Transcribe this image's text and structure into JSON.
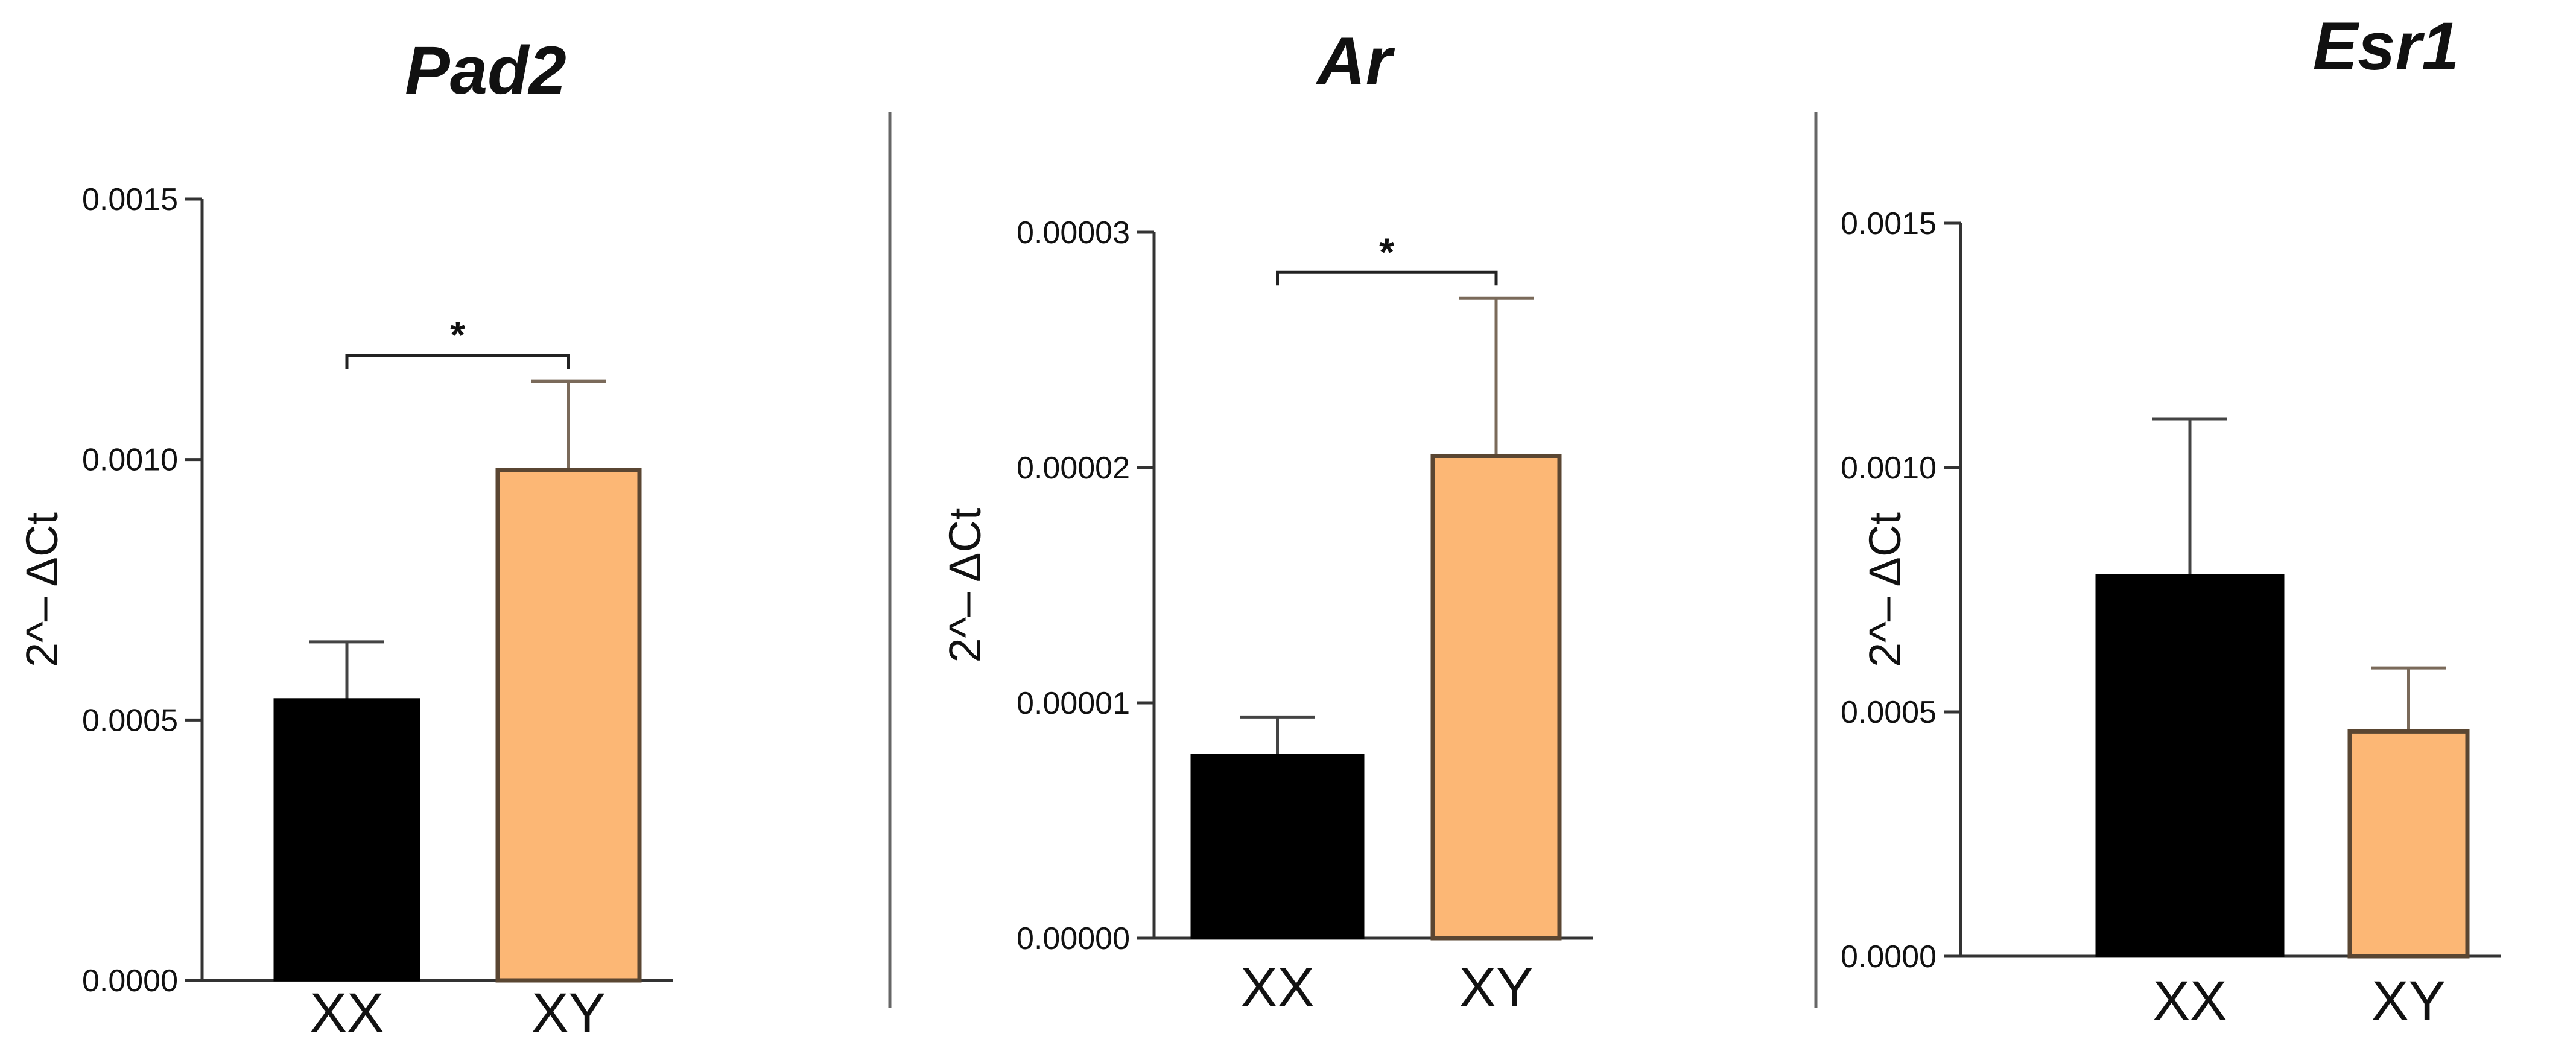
{
  "colors": {
    "xx_fill": "#000000",
    "xy_fill": "#FCB775",
    "xy_stroke": "#5a4632",
    "axis": "#333333",
    "divider": "#666666"
  },
  "chart_data": [
    {
      "type": "bar",
      "title": "Pad2",
      "ylabel": "2^– ΔCt",
      "categories": [
        "XX",
        "XY"
      ],
      "values": [
        0.00054,
        0.00098
      ],
      "errors": [
        0.00011,
        0.00017
      ],
      "ylim": [
        0,
        0.0015
      ],
      "yticks": [
        0.0,
        0.0005,
        0.001,
        0.0015
      ],
      "ytick_labels": [
        "0.0000",
        "0.0005",
        "0.0010",
        "0.0015"
      ],
      "significance": {
        "from": "XX",
        "to": "XY",
        "label": "*",
        "y": 0.0012
      }
    },
    {
      "type": "bar",
      "title": "Ar",
      "ylabel": "2^– ΔCt",
      "categories": [
        "XX",
        "XY"
      ],
      "values": [
        7.8e-06,
        2.05e-05
      ],
      "errors": [
        1.6e-06,
        6.7e-06
      ],
      "ylim": [
        0,
        3e-05
      ],
      "yticks": [
        0.0,
        1e-05,
        2e-05,
        3e-05
      ],
      "ytick_labels": [
        "0.00000",
        "0.00001",
        "0.00002",
        "0.00003"
      ],
      "significance": {
        "from": "XX",
        "to": "XY",
        "label": "*",
        "y": 2.83e-05
      }
    },
    {
      "type": "bar",
      "title": "Esr1",
      "ylabel": "2^– ΔCt",
      "categories": [
        "XX",
        "XY"
      ],
      "values": [
        0.00078,
        0.00046
      ],
      "errors": [
        0.00032,
        0.00013
      ],
      "ylim": [
        0,
        0.0015
      ],
      "yticks": [
        0.0,
        0.0005,
        0.001,
        0.0015
      ],
      "ytick_labels": [
        "0.0000",
        "0.0005",
        "0.0010",
        "0.0015"
      ]
    }
  ]
}
